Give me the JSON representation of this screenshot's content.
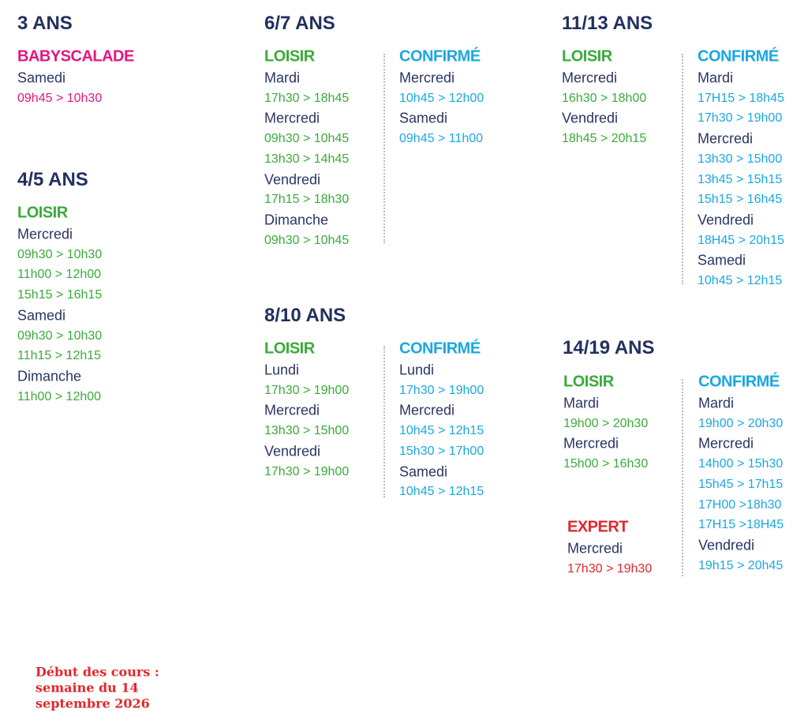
{
  "sections": [
    {
      "title": "3 ANS",
      "groups": [
        {
          "label": "BABYSCALADE",
          "color": "#e5167f",
          "days": [
            {
              "day": "Samedi",
              "times": [
                "09h45 > 10h30"
              ]
            }
          ]
        }
      ]
    },
    {
      "title": "4/5 ANS",
      "groups": [
        {
          "label": "LOISIR",
          "color": "#3aab3a",
          "days": [
            {
              "day": "Mercredi",
              "times": [
                "09h30 > 10h30",
                "11h00 > 12h00",
                "15h15 > 16h15"
              ]
            },
            {
              "day": "Samedi",
              "times": [
                "09h30 > 10h30",
                "11h15 > 12h15"
              ]
            },
            {
              "day": "Dimanche",
              "times": [
                "11h00 > 12h00"
              ]
            }
          ]
        }
      ]
    },
    {
      "title": "6/7 ANS",
      "groups": [
        {
          "label": "LOISIR",
          "color": "#3aab3a",
          "days": [
            {
              "day": "Mardi",
              "times": [
                "17h30 > 18h45"
              ]
            },
            {
              "day": "Mercredi",
              "times": [
                "09h30 > 10h45",
                "13h30 > 14h45"
              ]
            },
            {
              "day": "Vendredi",
              "times": [
                "17h15 > 18h30"
              ]
            },
            {
              "day": "Dimanche",
              "times": [
                "09h30 > 10h45"
              ]
            }
          ]
        },
        {
          "label": "CONFIRMÉ",
          "color": "#1aa8e0",
          "days": [
            {
              "day": "Mercredi",
              "times": [
                "10h45 > 12h00"
              ]
            },
            {
              "day": "Samedi",
              "times": [
                "09h45 > 11h00"
              ]
            }
          ]
        }
      ]
    },
    {
      "title": "8/10 ANS",
      "groups": [
        {
          "label": "LOISIR",
          "color": "#3aab3a",
          "days": [
            {
              "day": "Lundi",
              "times": [
                "17h30 > 19h00"
              ]
            },
            {
              "day": "Mercredi",
              "times": [
                "13h30 > 15h00"
              ]
            },
            {
              "day": "Vendredi",
              "times": [
                "17h30 > 19h00"
              ]
            }
          ]
        },
        {
          "label": "CONFIRMÉ",
          "color": "#1aa8e0",
          "days": [
            {
              "day": "Lundi",
              "times": [
                "17h30 > 19h00"
              ]
            },
            {
              "day": "Mercredi",
              "times": [
                "10h45 > 12h15",
                "15h30 > 17h00"
              ]
            },
            {
              "day": "Samedi",
              "times": [
                "10h45 > 12h15"
              ]
            }
          ]
        }
      ]
    },
    {
      "title": "11/13 ANS",
      "groups": [
        {
          "label": "LOISIR",
          "color": "#3aab3a",
          "days": [
            {
              "day": "Mercredi",
              "times": [
                "16h30 > 18h00"
              ]
            },
            {
              "day": "Vendredi",
              "times": [
                "18h45 > 20h15"
              ]
            }
          ]
        },
        {
          "label": "CONFIRMÉ",
          "color": "#1aa8e0",
          "days": [
            {
              "day": "Mardi",
              "times": [
                "17H15 > 18h45",
                "17h30 > 19h00"
              ]
            },
            {
              "day": "Mercredi",
              "times": [
                "13h30 > 15h00",
                "13h45 > 15h15",
                "15h15 > 16h45"
              ]
            },
            {
              "day": "Vendredi",
              "times": [
                "18H45 > 20h15"
              ]
            },
            {
              "day": "Samedi",
              "times": [
                "10h45 > 12h15"
              ]
            }
          ]
        }
      ]
    },
    {
      "title": "14/19 ANS",
      "groups": [
        {
          "label": "LOISIR",
          "color": "#3aab3a",
          "days": [
            {
              "day": "Mardi",
              "times": [
                "19h00 > 20h30"
              ]
            },
            {
              "day": "Mercredi",
              "times": [
                "15h00 > 16h30"
              ]
            }
          ]
        },
        {
          "label": "EXPERT",
          "color": "#e3262b",
          "days": [
            {
              "day": "Mercredi",
              "times": [
                "17h30 > 19h30"
              ]
            }
          ]
        },
        {
          "label": "CONFIRMÉ",
          "color": "#1aa8e0",
          "days": [
            {
              "day": "Mardi",
              "times": [
                "19h00 > 20h30"
              ]
            },
            {
              "day": "Mercredi",
              "times": [
                "14h00 > 15h30",
                "15h45 > 17h15",
                "17H00 >18h30",
                "17H15 >18H45"
              ]
            },
            {
              "day": "Vendredi",
              "times": [
                "19h15 > 20h45"
              ]
            }
          ]
        }
      ]
    }
  ],
  "footer": {
    "lines": [
      "Début des cours :",
      "semaine du 14",
      "septembre 2026"
    ]
  }
}
